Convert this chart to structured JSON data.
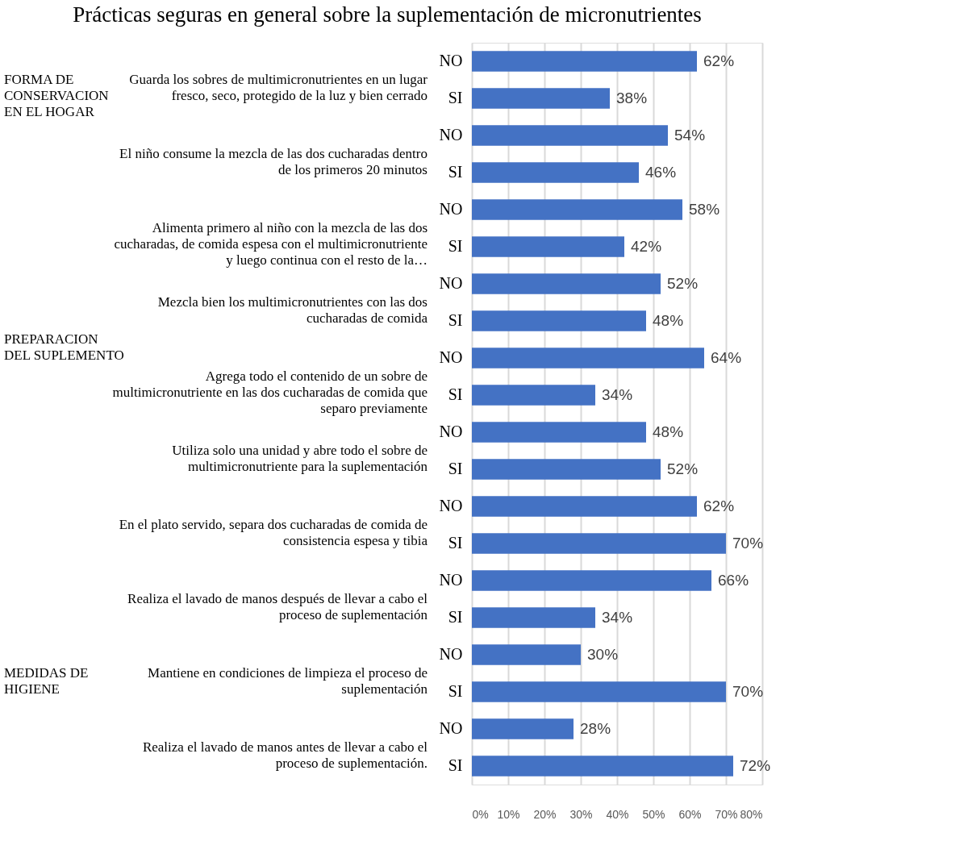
{
  "chart_data": {
    "type": "bar",
    "orientation": "horizontal",
    "title": "Prácticas seguras en general sobre la suplementación  de micronutrientes",
    "categories": [
      "NO",
      "SI",
      "NO",
      "SI",
      "NO",
      "SI",
      "NO",
      "SI",
      "NO",
      "SI",
      "NO",
      "SI",
      "NO",
      "SI",
      "NO",
      "SI",
      "NO",
      "SI",
      "NO",
      "SI"
    ],
    "values": [
      62,
      38,
      54,
      46,
      58,
      42,
      52,
      48,
      64,
      34,
      48,
      52,
      62,
      70,
      66,
      34,
      30,
      70,
      28,
      72
    ],
    "value_labels": [
      "62%",
      "38%",
      "54%",
      "46%",
      "58%",
      "42%",
      "52%",
      "48%",
      "64%",
      "34%",
      "48%",
      "52%",
      "62%",
      "70%",
      "66%",
      "34%",
      "30%",
      "70%",
      "28%",
      "72%"
    ],
    "color": "#4472c4",
    "xlim": [
      0,
      80
    ],
    "xticks": [
      {
        "value": 0,
        "label": "0%"
      },
      {
        "value": 10,
        "label": "10%"
      },
      {
        "value": 20,
        "label": "20%"
      },
      {
        "value": 30,
        "label": "30%"
      },
      {
        "value": 40,
        "label": "40%"
      },
      {
        "value": 50,
        "label": "50%"
      },
      {
        "value": 60,
        "label": "60%"
      },
      {
        "value": 70,
        "label": "70%"
      },
      {
        "value": 80,
        "label": "80%"
      }
    ],
    "grid": "x",
    "annotations": [
      "FORMA DE CONSERVACION EN EL HOGAR",
      "PREPARACION DEL SUPLEMENTO",
      "MEDIDAS DE HIGIENE",
      "Guarda los sobres de multimicronutrientes en un lugar fresco, seco, protegido de la luz y bien cerrado",
      "El niño consume la mezcla de las dos cucharadas dentro de los primeros 20 minutos",
      "Alimenta primero al niño con la mezcla de las dos cucharadas, de comida espesa con el multimicronutriente y luego continua con el resto de la…",
      "Mezcla bien los multimicronutrientes con las dos cucharadas de comida",
      "Agrega todo el contenido de un sobre de multimicronutriente en las dos cucharadas de comida que separo previamente",
      "Utiliza solo una unidad y abre todo el sobre de multimicronutriente para la suplementación",
      "En el plato servido, separa dos cucharadas de comida de consistencia espesa y tibia",
      "Realiza el lavado de manos después de llevar a cabo el proceso de suplementación",
      "Mantiene en condiciones de limpieza el proceso de suplementación",
      "Realiza el lavado de manos antes de llevar a cabo el proceso de suplementación."
    ]
  }
}
